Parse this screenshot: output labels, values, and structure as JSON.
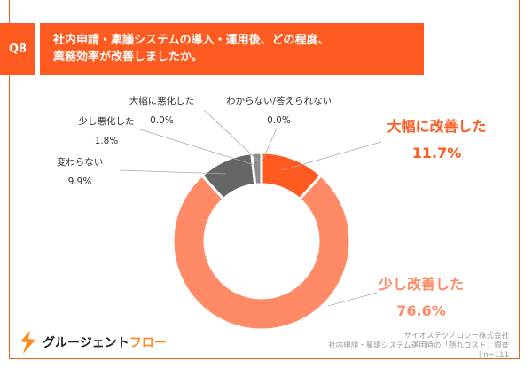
{
  "question": {
    "number": "Q8",
    "text": "社内申請・稟議システムの導入・運用後、どの程度、\n業務効率が改善しましたか。"
  },
  "chart_data": {
    "type": "pie",
    "donut": true,
    "title": "社内申請・稟議システムの導入・運用後、どの程度、業務効率が改善しましたか。",
    "slices": [
      {
        "label": "大幅に改善した",
        "value": 11.7,
        "display": "11.7%",
        "color": "#FF5A1F"
      },
      {
        "label": "少し改善した",
        "value": 76.6,
        "display": "76.6%",
        "color": "#FF8A65"
      },
      {
        "label": "変わらない",
        "value": 9.9,
        "display": "9.9%",
        "color": "#666666"
      },
      {
        "label": "少し悪化した",
        "value": 1.8,
        "display": "1.8%",
        "color": "#8C8C8C"
      },
      {
        "label": "大幅に悪化した",
        "value": 0.0,
        "display": "0.0%",
        "color": "#A6A6A6"
      },
      {
        "label": "わからない/答えられない",
        "value": 0.0,
        "display": "0.0%",
        "color": "#BFBFBF"
      }
    ]
  },
  "footer": {
    "logo_main": "グルージェント",
    "logo_accent": "フロー",
    "source_company": "サイオステクノロジー株式会社",
    "source_survey": "社内申請・稟議システム運用時の「隠れコスト」調査",
    "sample": "| n=111"
  }
}
